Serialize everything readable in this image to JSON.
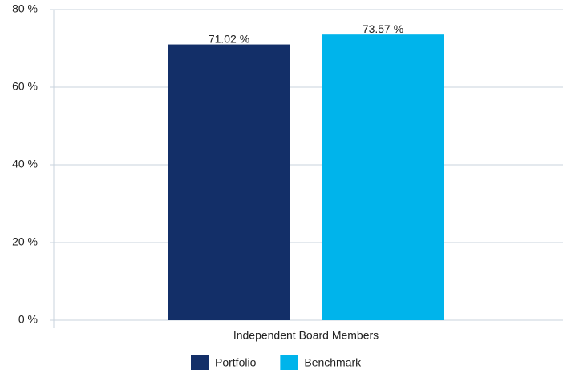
{
  "chart_data": {
    "type": "bar",
    "categories": [
      "Independent Board Members"
    ],
    "series": [
      {
        "name": "Portfolio",
        "color": "#132f68",
        "values": [
          71.02
        ],
        "value_labels": [
          "71.02 %"
        ]
      },
      {
        "name": "Benchmark",
        "color": "#00b4eb",
        "values": [
          73.57
        ],
        "value_labels": [
          "73.57 %"
        ]
      }
    ],
    "ylim": [
      0,
      80
    ],
    "yticks": [
      {
        "value": 0,
        "label": "0 %"
      },
      {
        "value": 20,
        "label": "20 %"
      },
      {
        "value": 40,
        "label": "40 %"
      },
      {
        "value": 60,
        "label": "60 %"
      },
      {
        "value": 80,
        "label": "80 %"
      }
    ],
    "grid": true,
    "legend": "bottom"
  }
}
